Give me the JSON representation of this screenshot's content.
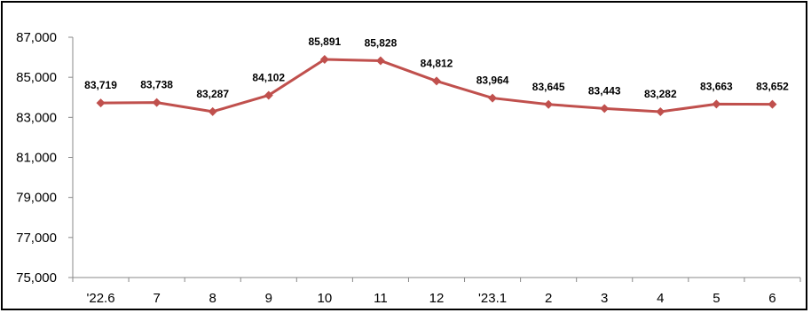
{
  "chart_data": {
    "type": "line",
    "categories": [
      "'22.6",
      "7",
      "8",
      "9",
      "10",
      "11",
      "12",
      "'23.1",
      "2",
      "3",
      "4",
      "5",
      "6"
    ],
    "series": [
      {
        "values": [
          83719,
          83738,
          83287,
          84102,
          85891,
          85828,
          84812,
          83964,
          83645,
          83443,
          83282,
          83663,
          83652
        ],
        "labels": [
          "83,719",
          "83,738",
          "83,287",
          "84,102",
          "85,891",
          "85,828",
          "84,812",
          "83,964",
          "83,645",
          "83,443",
          "83,282",
          "83,663",
          "83,652"
        ],
        "color": "#c0504d",
        "marker": "diamond"
      }
    ],
    "ylim": [
      75000,
      87000
    ],
    "yticks": [
      75000,
      77000,
      79000,
      81000,
      83000,
      85000,
      87000
    ],
    "ytick_labels": [
      "75,000",
      "77,000",
      "79,000",
      "81,000",
      "83,000",
      "85,000",
      "87,000"
    ],
    "grid": false,
    "legend": "none"
  }
}
